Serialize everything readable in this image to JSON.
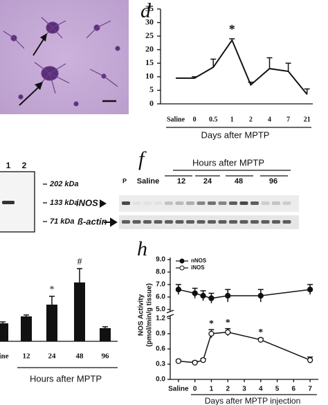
{
  "panels": {
    "e": {
      "lanes": [
        "1",
        "2"
      ],
      "markers": [
        "202 kDa",
        "133 kDa",
        "71 kDa"
      ]
    },
    "f": {
      "label": "f",
      "title": "Hours after MPTP",
      "lanes": [
        "P",
        "Saline",
        "12",
        "24",
        "48",
        "96"
      ],
      "rows": [
        "iNOS",
        "ß-actin"
      ]
    }
  },
  "chart_data": [
    {
      "type": "line",
      "label": "d",
      "categories": [
        "Saline",
        "0",
        "0.5",
        "1",
        "2",
        "4",
        "7",
        "21"
      ],
      "values": [
        9.5,
        9.5,
        13.5,
        23.5,
        7,
        13,
        12,
        3.5
      ],
      "errors": [
        0,
        0.5,
        3,
        0.5,
        1,
        4,
        3,
        2
      ],
      "ylim": [
        0,
        35
      ],
      "yticks": [
        0,
        5,
        10,
        15,
        20,
        25,
        30,
        35
      ],
      "xlabel": "Days after MPTP",
      "annotations": [
        {
          "index": 3,
          "text": "*"
        }
      ],
      "color": "#111"
    },
    {
      "type": "bar",
      "categories": [
        "line",
        "12",
        "24",
        "48",
        "96"
      ],
      "values": [
        2.6,
        3.6,
        5.3,
        8.5,
        1.9
      ],
      "errors": [
        0.2,
        0.2,
        1.2,
        2,
        0.2
      ],
      "xlabel": "Hours after MPTP",
      "annotations": [
        {
          "index": 2,
          "text": "*"
        },
        {
          "index": 3,
          "text": "#"
        }
      ],
      "color": "#111"
    },
    {
      "type": "broken-line",
      "label": "h",
      "ylabel": [
        "NOS Activity",
        "(pmol/min/g tissue)"
      ],
      "xlabel": "Days after MPTP injection",
      "xlim": [
        -1.5,
        7.5
      ],
      "xticks": [
        {
          "value": -1,
          "label": "Saline"
        },
        0,
        1,
        2,
        3,
        4,
        5,
        6,
        7
      ],
      "ylim_upper": [
        5,
        9
      ],
      "yticks_upper": [
        {
          "value": 5,
          "label": "5.0"
        },
        {
          "value": 6,
          "label": "6.0"
        },
        {
          "value": 7,
          "label": "7.0"
        },
        {
          "value": 8,
          "label": "8.0"
        },
        {
          "value": 9,
          "label": "9.0"
        }
      ],
      "ylim": [
        0,
        1.2
      ],
      "yticks": [
        {
          "value": 0,
          "label": "0.0"
        },
        0.3,
        0.6,
        0.9,
        1.2
      ],
      "series": [
        {
          "name": "nNOS",
          "segment": "upper",
          "marker": "filled",
          "x": [
            -1,
            0,
            0.5,
            1,
            2,
            4,
            7
          ],
          "values": [
            6.6,
            6.3,
            6.1,
            5.9,
            6.1,
            6.1,
            6.6
          ],
          "errors": [
            0.4,
            0.4,
            0.4,
            0.4,
            0.5,
            0.5,
            0.4
          ]
        },
        {
          "name": "iNOS",
          "segment": "lower",
          "marker": "open",
          "x": [
            -1,
            0,
            0.5,
            1,
            2,
            4,
            7
          ],
          "values": [
            0.36,
            0.33,
            0.38,
            0.9,
            0.93,
            0.78,
            0.38
          ],
          "errors": [
            0.02,
            0.03,
            0.03,
            0.08,
            0.07,
            0.03,
            0.06
          ]
        }
      ],
      "annotations": [
        {
          "x": 1,
          "text": "*"
        },
        {
          "x": 2,
          "text": "*"
        },
        {
          "x": 4,
          "text": "*"
        }
      ]
    }
  ]
}
